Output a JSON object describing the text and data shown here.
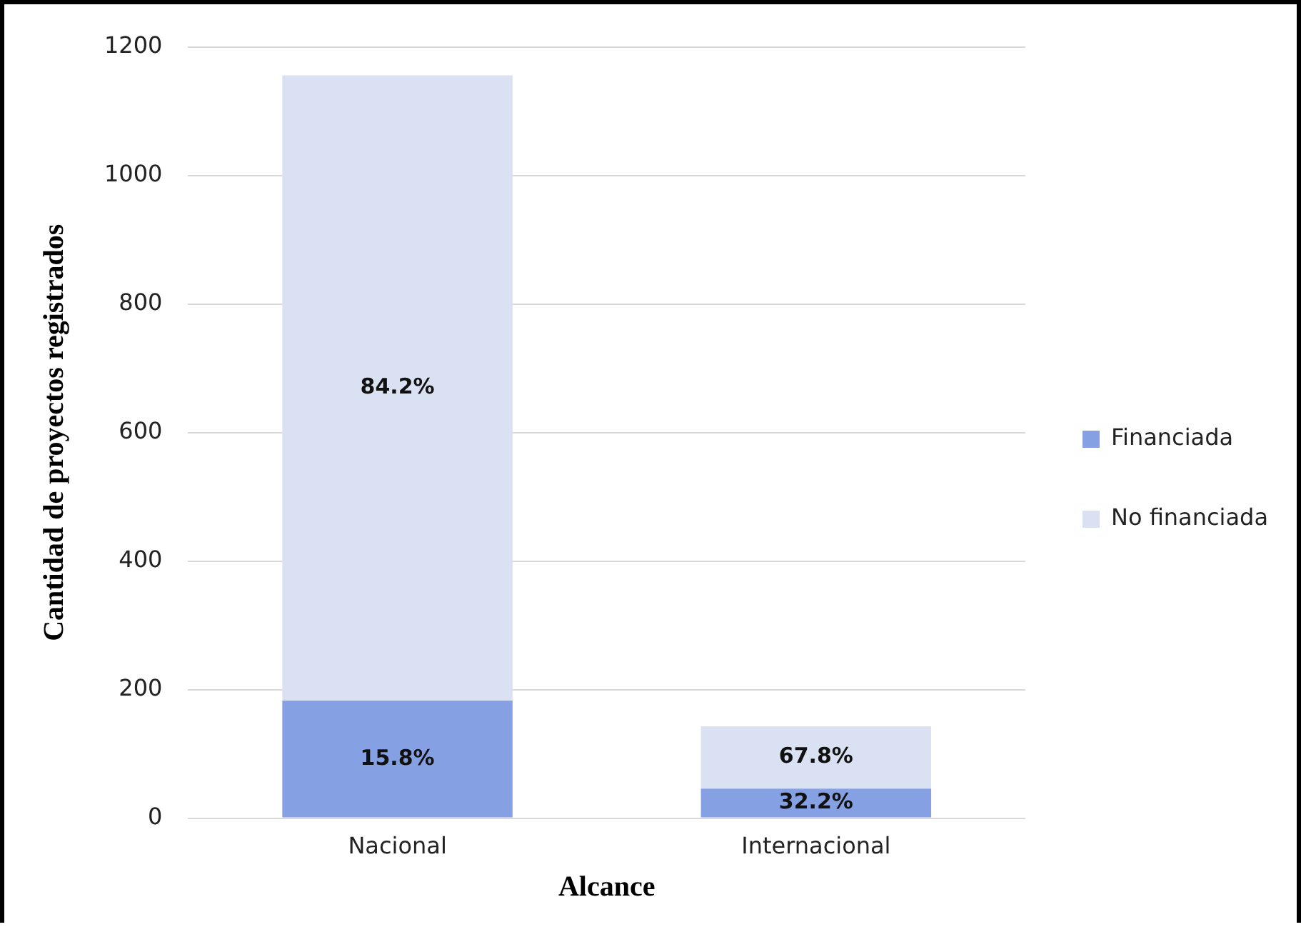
{
  "chart_data": {
    "type": "bar",
    "stacked": true,
    "xlabel": "Alcance",
    "ylabel": "Cantidad de proyectos registrados",
    "categories": [
      "Nacional",
      "Internacional"
    ],
    "series": [
      {
        "name": "Financiada",
        "color": "#86a0e4",
        "values": [
          183,
          46
        ]
      },
      {
        "name": "No financiada",
        "color": "#d9e1f2",
        "values": [
          973,
          97
        ]
      }
    ],
    "annotations": [
      "15.8%",
      "32.2%",
      "84.2%",
      "67.8%"
    ],
    "ylim": [
      0,
      1200
    ],
    "yticks": [
      0,
      200,
      400,
      600,
      800,
      1000,
      1200
    ],
    "grid": "y",
    "legend": "right"
  }
}
